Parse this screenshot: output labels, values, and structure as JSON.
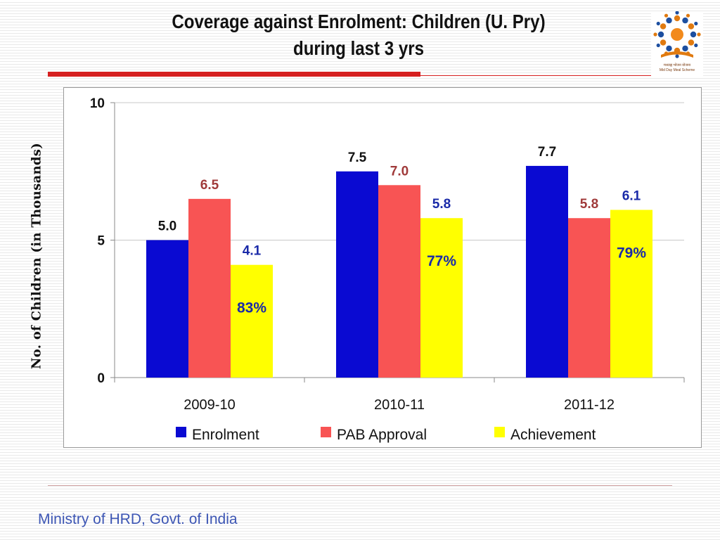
{
  "title_line1": "Coverage against Enrolment: Children (U. Pry)",
  "title_line2": "during last 3 yrs",
  "logo": {
    "caption_hindi": "मध्याह्न भोजन योजना",
    "caption_english": "Mid Day Meal Scheme"
  },
  "footer": "Ministry of HRD, Govt. of India",
  "colors": {
    "enrolment": "#0a0ad2",
    "pab": "#f85454",
    "achievement": "#ffff00",
    "accent_red": "#d62020",
    "footer_blue": "#3d56b4"
  },
  "chart_data": {
    "type": "bar",
    "title": "",
    "ylabel": "No. of Children (in Thousands)",
    "xlabel": "",
    "categories": [
      "2009-10",
      "2010-11",
      "2011-12"
    ],
    "ylim": [
      0,
      10
    ],
    "yticks": [
      0,
      5,
      10
    ],
    "grid": true,
    "legend_position": "bottom",
    "series": [
      {
        "name": "Enrolment",
        "color": "#0a0ad2",
        "label_color": "#111111",
        "values": [
          5.0,
          7.5,
          7.7
        ],
        "labels": [
          "5.0",
          "7.5",
          "7.7"
        ]
      },
      {
        "name": "PAB Approval",
        "color": "#f85454",
        "label_color": "#a03a3a",
        "values": [
          6.5,
          7.0,
          5.8
        ],
        "labels": [
          "6.5",
          "7.0",
          "5.8"
        ]
      },
      {
        "name": "Achievement",
        "color": "#ffff00",
        "label_color": "#1a2aa8",
        "values": [
          4.1,
          5.8,
          6.1
        ],
        "labels": [
          "4.1",
          "5.8",
          "6.1"
        ]
      }
    ],
    "annotations": [
      "83%",
      "77%",
      "79%"
    ]
  }
}
